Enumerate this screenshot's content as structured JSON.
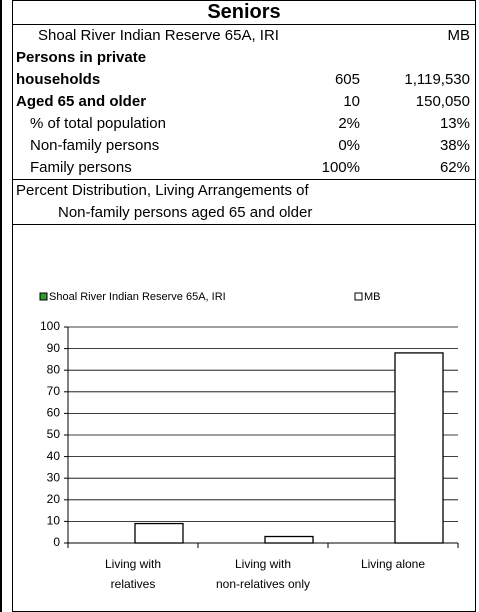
{
  "header": {
    "title": "Seniors"
  },
  "table": {
    "columns": [
      "Shoal River Indian Reserve 65A, IRI",
      "MB"
    ],
    "rows": [
      {
        "label": "Persons in private"
      },
      {
        "label": "households",
        "values": [
          "605",
          "1,119,530"
        ]
      },
      {
        "label": "Aged 65 and older",
        "values": [
          "10",
          "150,050"
        ]
      },
      {
        "label": "% of total population",
        "values": [
          "2%",
          "13%"
        ]
      },
      {
        "label": "Non-family persons",
        "values": [
          "0%",
          "38%"
        ]
      },
      {
        "label": "Family persons",
        "values": [
          "100%",
          "62%"
        ]
      }
    ]
  },
  "chart_data": {
    "type": "bar",
    "title": [
      "Percent Distribution, Living Arrangements of",
      "Non-family persons aged 65 and older"
    ],
    "categories": [
      [
        "Living with",
        "relatives"
      ],
      [
        "Living with",
        "non-relatives only"
      ],
      [
        "Living alone"
      ]
    ],
    "series": [
      {
        "name": "Shoal River Indian Reserve 65A, IRI",
        "color": "#339933",
        "values": [
          0,
          0,
          0
        ]
      },
      {
        "name": "MB",
        "color": "#ffffff",
        "values": [
          9,
          3,
          88
        ]
      }
    ],
    "ylim": [
      0,
      100
    ],
    "yticks": [
      0,
      10,
      20,
      30,
      40,
      50,
      60,
      70,
      80,
      90,
      100
    ],
    "grid": true
  }
}
